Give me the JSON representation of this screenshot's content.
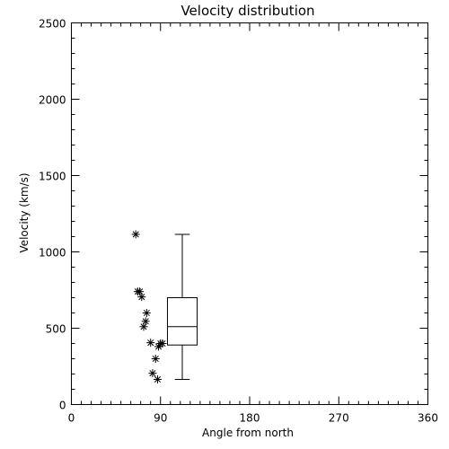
{
  "chart_data": {
    "type": "scatter",
    "title": "Velocity distribution",
    "xlabel": "Angle from north",
    "ylabel": "Velocity (km/s)",
    "xlim": [
      0,
      360
    ],
    "ylim": [
      0,
      2500
    ],
    "x_ticks": [
      0,
      90,
      180,
      270,
      360
    ],
    "x_tick_labels": [
      "0",
      "90",
      "180",
      "270",
      "360"
    ],
    "y_ticks": [
      0,
      500,
      1000,
      1500,
      2000,
      2500
    ],
    "y_tick_labels": [
      "0",
      "500",
      "1000",
      "1500",
      "2000",
      "2500"
    ],
    "x_minor_step": 10,
    "y_minor_step": 100,
    "grid": false,
    "marker": "asterisk",
    "points": [
      {
        "x": 65,
        "y": 1115
      },
      {
        "x": 67,
        "y": 740
      },
      {
        "x": 69,
        "y": 740
      },
      {
        "x": 71,
        "y": 705
      },
      {
        "x": 76,
        "y": 600
      },
      {
        "x": 75,
        "y": 545
      },
      {
        "x": 73,
        "y": 510
      },
      {
        "x": 80,
        "y": 405
      },
      {
        "x": 90,
        "y": 400
      },
      {
        "x": 92,
        "y": 400
      },
      {
        "x": 88,
        "y": 380
      },
      {
        "x": 85,
        "y": 300
      },
      {
        "x": 82,
        "y": 205
      },
      {
        "x": 87,
        "y": 165
      }
    ],
    "boxplot": {
      "x_center": 112,
      "x_half_width": 15,
      "whisker_low": 165,
      "q1": 390,
      "median": 510,
      "q3": 700,
      "whisker_high": 1115
    }
  }
}
